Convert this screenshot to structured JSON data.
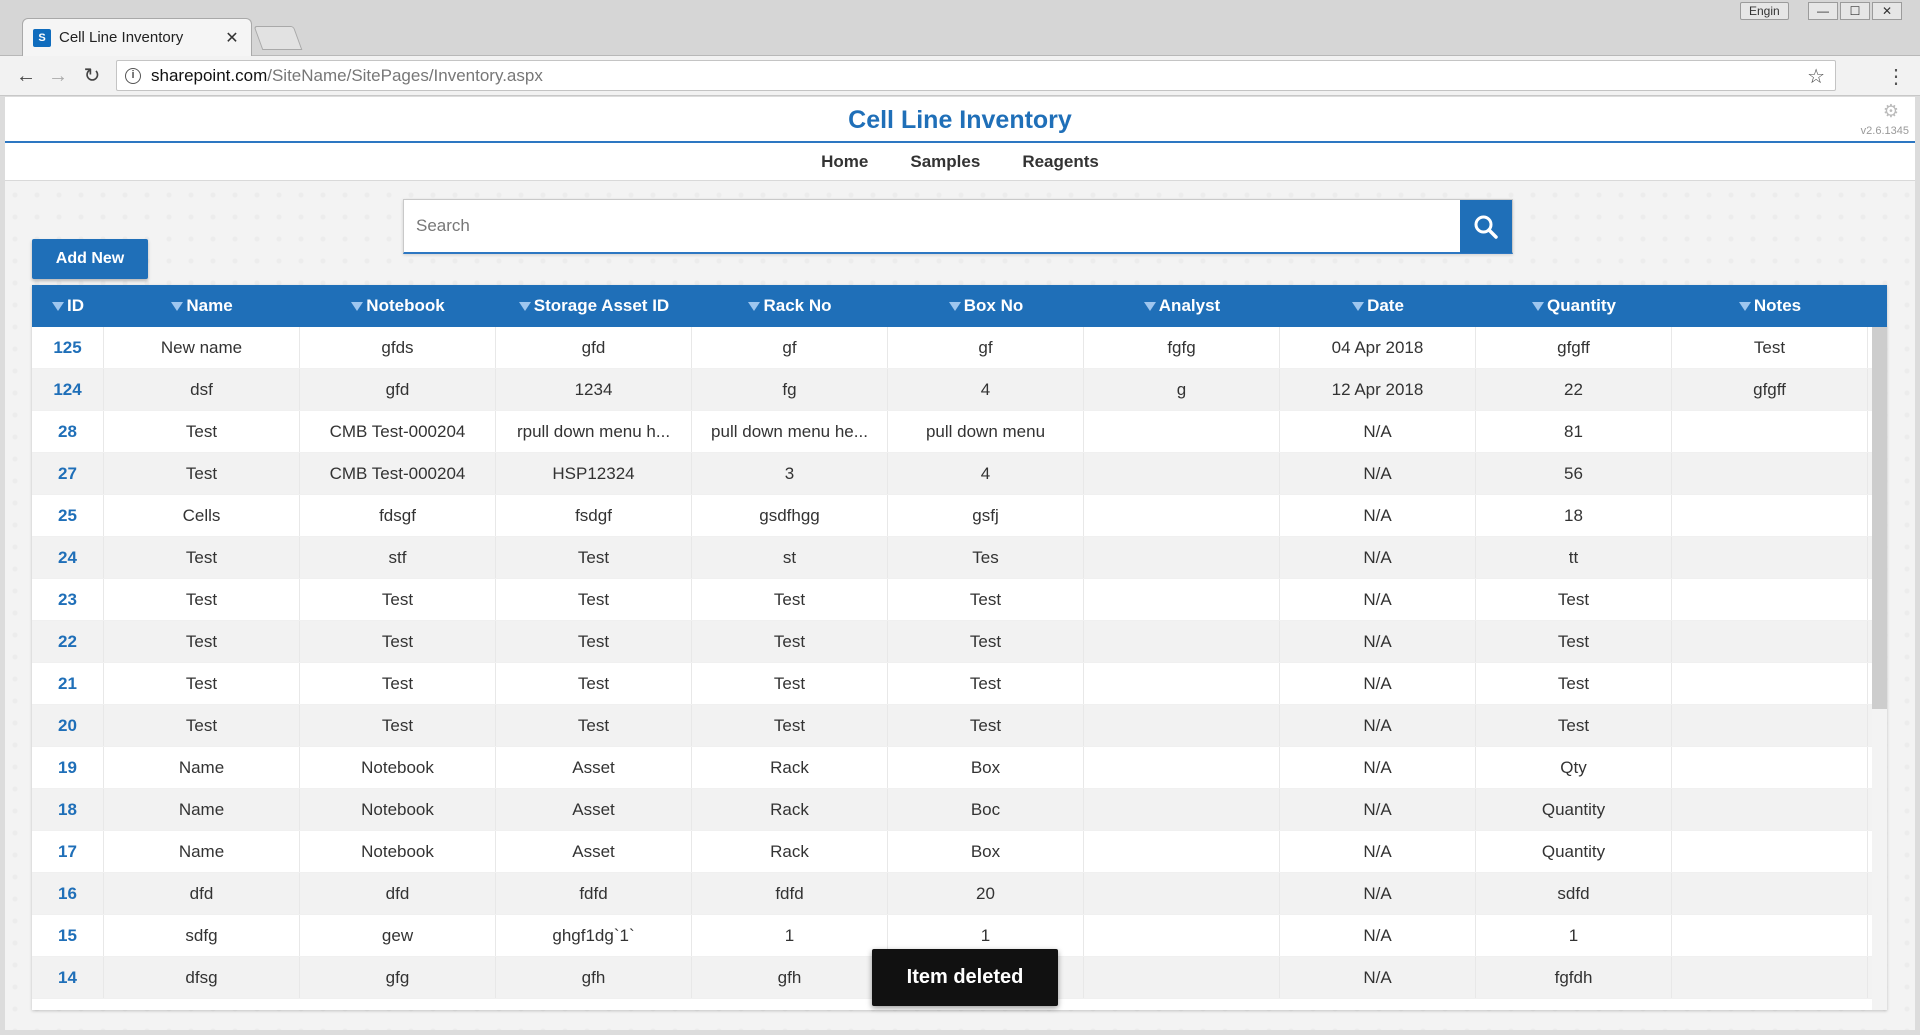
{
  "browser": {
    "tab_title": "Cell Line Inventory",
    "tab_favicon_text": "S",
    "url_domain": "sharepoint.com",
    "url_path": "/SiteName/SitePages/Inventory.aspx",
    "user_label": "Engin",
    "min_label": "—",
    "max_label": "☐",
    "close_label": "✕"
  },
  "header": {
    "title": "Cell Line Inventory",
    "version": "v2.6.1345"
  },
  "nav": {
    "home": "Home",
    "samples": "Samples",
    "reagents": "Reagents"
  },
  "search": {
    "placeholder": "Search"
  },
  "add_new_label": "Add New",
  "columns": [
    "ID",
    "Name",
    "Notebook",
    "Storage Asset ID",
    "Rack No",
    "Box No",
    "Analyst",
    "Date",
    "Quantity",
    "Notes"
  ],
  "rows": [
    [
      "125",
      "New name",
      "gfds",
      "gfd",
      "gf",
      "gf",
      "fgfg",
      "04 Apr 2018",
      "gfgff",
      "Test"
    ],
    [
      "124",
      "dsf",
      "gfd",
      "1234",
      "fg",
      "4",
      "g",
      "12 Apr 2018",
      "22",
      "gfgff"
    ],
    [
      "28",
      "Test",
      "CMB Test-000204",
      "rpull down menu h...",
      "pull down menu he...",
      "pull down menu",
      "",
      "N/A",
      "81",
      ""
    ],
    [
      "27",
      "Test",
      "CMB Test-000204",
      "HSP12324",
      "3",
      "4",
      "",
      "N/A",
      "56",
      ""
    ],
    [
      "25",
      "Cells",
      "fdsgf",
      "fsdgf",
      "gsdfhgg",
      "gsfj",
      "",
      "N/A",
      "18",
      ""
    ],
    [
      "24",
      "Test",
      "stf",
      "Test",
      "st",
      "Tes",
      "",
      "N/A",
      "tt",
      ""
    ],
    [
      "23",
      "Test",
      "Test",
      "Test",
      "Test",
      "Test",
      "",
      "N/A",
      "Test",
      ""
    ],
    [
      "22",
      "Test",
      "Test",
      "Test",
      "Test",
      "Test",
      "",
      "N/A",
      "Test",
      ""
    ],
    [
      "21",
      "Test",
      "Test",
      "Test",
      "Test",
      "Test",
      "",
      "N/A",
      "Test",
      ""
    ],
    [
      "20",
      "Test",
      "Test",
      "Test",
      "Test",
      "Test",
      "",
      "N/A",
      "Test",
      ""
    ],
    [
      "19",
      "Name",
      "Notebook",
      "Asset",
      "Rack",
      "Box",
      "",
      "N/A",
      "Qty",
      ""
    ],
    [
      "18",
      "Name",
      "Notebook",
      "Asset",
      "Rack",
      "Boc",
      "",
      "N/A",
      "Quantity",
      ""
    ],
    [
      "17",
      "Name",
      "Notebook",
      "Asset",
      "Rack",
      "Box",
      "",
      "N/A",
      "Quantity",
      ""
    ],
    [
      "16",
      "dfd",
      "dfd",
      "fdfd",
      "fdfd",
      "20",
      "",
      "N/A",
      "sdfd",
      ""
    ],
    [
      "15",
      "sdfg",
      "gew",
      "ghgf1dg`1`",
      "1",
      "1",
      "",
      "N/A",
      "1",
      ""
    ],
    [
      "14",
      "dfsg",
      "gfg",
      "gfh",
      "gfh",
      "",
      "",
      "N/A",
      "fgfdh",
      ""
    ]
  ],
  "toast": "Item deleted",
  "colors": {
    "accent": "#1f6fb8",
    "toast_bg": "#111111"
  }
}
